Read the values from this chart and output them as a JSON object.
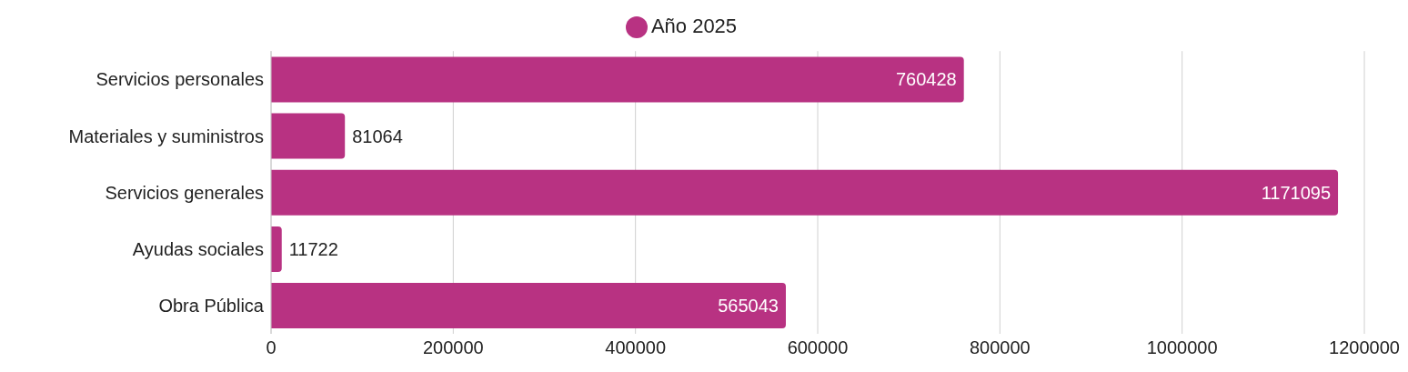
{
  "chart_data": {
    "type": "bar",
    "orientation": "horizontal",
    "categories": [
      "Servicios personales",
      "Materiales y suministros",
      "Servicios generales",
      "Ayudas sociales",
      "Obra Pública"
    ],
    "series": [
      {
        "name": "Año 2025",
        "color": "#b83282",
        "values": [
          760428,
          81064,
          1171095,
          11722,
          565043
        ]
      }
    ],
    "xlim": [
      0,
      1200000
    ],
    "xticks": [
      0,
      200000,
      400000,
      600000,
      800000,
      1000000,
      1200000
    ],
    "grid": "x",
    "legend": "top",
    "data_labels": true
  }
}
